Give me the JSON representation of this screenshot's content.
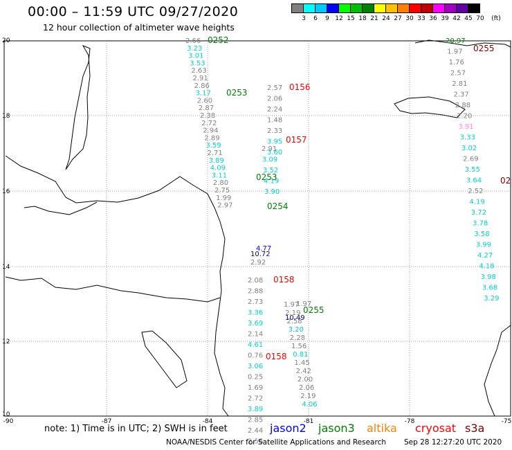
{
  "header": {
    "title": "00:00 – 11:59 UTC 09/27/2020",
    "subtitle": "12 hour collection of altimeter wave heights"
  },
  "legend": {
    "colors": [
      "#808080",
      "#00ffff",
      "#00c8ff",
      "#0000ff",
      "#00ff00",
      "#00c000",
      "#008000",
      "#ffff00",
      "#ffc000",
      "#ff8000",
      "#ff0000",
      "#c00000",
      "#ff00ff",
      "#a000c0",
      "#6000a0",
      "#000000"
    ],
    "labels": [
      "3",
      "6",
      "9",
      "12",
      "15",
      "18",
      "21",
      "24",
      "27",
      "30",
      "33",
      "36",
      "39",
      "42",
      "45",
      "70",
      "(ft)"
    ]
  },
  "axes": {
    "lat_labels": [
      "20",
      "18",
      "16",
      "14",
      "12",
      "10"
    ],
    "lon_labels": [
      "-90",
      "-87",
      "-84",
      "-81",
      "-78",
      "-75"
    ]
  },
  "tracks": [
    {
      "label": "0252",
      "color": "#008000",
      "points": [
        {
          "v": "2.66",
          "c": "#808080"
        },
        {
          "v": "3.23",
          "c": "#00d0d0"
        },
        {
          "v": "3.01",
          "c": "#00d0d0"
        },
        {
          "v": "3.53",
          "c": "#00d0d0"
        },
        {
          "v": "2.63",
          "c": "#808080"
        },
        {
          "v": "2.91",
          "c": "#808080"
        },
        {
          "v": "2.86",
          "c": "#808080"
        },
        {
          "v": "3.17",
          "c": "#00d0d0"
        },
        {
          "v": "2.60",
          "c": "#808080"
        },
        {
          "v": "2.87",
          "c": "#808080"
        },
        {
          "v": "2.38",
          "c": "#808080"
        },
        {
          "v": "2.72",
          "c": "#808080"
        },
        {
          "v": "2.94",
          "c": "#808080"
        },
        {
          "v": "2.89",
          "c": "#808080"
        },
        {
          "v": "3.59",
          "c": "#00d0d0"
        },
        {
          "v": "2.71",
          "c": "#808080"
        },
        {
          "v": "3.89",
          "c": "#00d0d0"
        },
        {
          "v": "4.09",
          "c": "#00d0d0"
        },
        {
          "v": "3.11",
          "c": "#00d0d0"
        },
        {
          "v": "2.80",
          "c": "#808080"
        },
        {
          "v": "2.75",
          "c": "#808080"
        },
        {
          "v": "1.99",
          "c": "#808080"
        },
        {
          "v": "2.97",
          "c": "#808080"
        }
      ]
    },
    {
      "label": "0253",
      "color": "#008000",
      "points": []
    },
    {
      "label": "0156",
      "color": "#ff0000",
      "points": [
        {
          "v": "2.57",
          "c": "#808080"
        },
        {
          "v": "2.06",
          "c": "#808080"
        },
        {
          "v": "2.24",
          "c": "#808080"
        },
        {
          "v": "1.48",
          "c": "#808080"
        },
        {
          "v": "2.33",
          "c": "#808080"
        },
        {
          "v": "3.95",
          "c": "#00d0d0"
        },
        {
          "v": "3.60",
          "c": "#00d0d0"
        }
      ]
    },
    {
      "label": "0157",
      "color": "#ff0000",
      "points": [
        {
          "v": "2.91",
          "c": "#808080"
        },
        {
          "v": "3.09",
          "c": "#00d0d0"
        },
        {
          "v": "3.52",
          "c": "#00d0d0"
        },
        {
          "v": "4.19",
          "c": "#00d0d0"
        },
        {
          "v": "3.90",
          "c": "#00d0d0"
        }
      ]
    },
    {
      "label": "0158",
      "color": "#ff0000",
      "points": [
        {
          "v": "2.08",
          "c": "#808080"
        },
        {
          "v": "2.88",
          "c": "#808080"
        },
        {
          "v": "2.73",
          "c": "#808080"
        },
        {
          "v": "3.36",
          "c": "#00d0d0"
        },
        {
          "v": "3.69",
          "c": "#00d0d0"
        },
        {
          "v": "2.14",
          "c": "#808080"
        },
        {
          "v": "4.61",
          "c": "#00d0d0"
        },
        {
          "v": "0.76",
          "c": "#808080"
        },
        {
          "v": "3.06",
          "c": "#00d0d0"
        },
        {
          "v": "0.25",
          "c": "#808080"
        },
        {
          "v": "1.69",
          "c": "#808080"
        },
        {
          "v": "2.72",
          "c": "#808080"
        },
        {
          "v": "3.89",
          "c": "#00d0d0"
        },
        {
          "v": "2.85",
          "c": "#808080"
        },
        {
          "v": "2.44",
          "c": "#808080"
        },
        {
          "v": "2.56",
          "c": "#808080"
        }
      ]
    },
    {
      "label": "0255",
      "color": "#008000",
      "points": [
        {
          "v": "1.97",
          "c": "#808080"
        },
        {
          "v": "2.19",
          "c": "#808080"
        },
        {
          "v": "2.58",
          "c": "#808080"
        },
        {
          "v": "3.20",
          "c": "#00d0d0"
        },
        {
          "v": "2.28",
          "c": "#808080"
        },
        {
          "v": "1.56",
          "c": "#808080"
        },
        {
          "v": "0.81",
          "c": "#00d0d0"
        },
        {
          "v": "1.45",
          "c": "#808080"
        },
        {
          "v": "2.42",
          "c": "#808080"
        },
        {
          "v": "2.00",
          "c": "#808080"
        },
        {
          "v": "2.06",
          "c": "#808080"
        },
        {
          "v": "2.19",
          "c": "#808080"
        },
        {
          "v": "4.06",
          "c": "#00d0d0"
        }
      ]
    },
    {
      "label": "0255",
      "color": "#800000",
      "points": [
        {
          "v": "20.97",
          "c": "#008000"
        },
        {
          "v": "1.97",
          "c": "#808080"
        },
        {
          "v": "1.76",
          "c": "#808080"
        },
        {
          "v": "2.57",
          "c": "#808080"
        },
        {
          "v": "2.81",
          "c": "#808080"
        },
        {
          "v": "2.37",
          "c": "#808080"
        },
        {
          "v": "2.88",
          "c": "#808080"
        },
        {
          "v": "2.20",
          "c": "#808080"
        },
        {
          "v": "3.91",
          "c": "#ff80ff"
        },
        {
          "v": "3.33",
          "c": "#00d0d0"
        },
        {
          "v": "3.02",
          "c": "#00d0d0"
        },
        {
          "v": "2.69",
          "c": "#808080"
        },
        {
          "v": "3.55",
          "c": "#00d0d0"
        },
        {
          "v": "3.64",
          "c": "#00d0d0"
        },
        {
          "v": "2.52",
          "c": "#808080"
        },
        {
          "v": "4.19",
          "c": "#00d0d0"
        },
        {
          "v": "3.72",
          "c": "#00d0d0"
        },
        {
          "v": "3.78",
          "c": "#00d0d0"
        },
        {
          "v": "3.58",
          "c": "#00d0d0"
        },
        {
          "v": "3.99",
          "c": "#00d0d0"
        },
        {
          "v": "4.27",
          "c": "#00d0d0"
        },
        {
          "v": "4.18",
          "c": "#00d0d0"
        },
        {
          "v": "3.98",
          "c": "#00d0d0"
        },
        {
          "v": "3.68",
          "c": "#00d0d0"
        },
        {
          "v": "3.29",
          "c": "#00d0d0"
        }
      ]
    }
  ],
  "extra_labels": [
    {
      "v": "0253",
      "c": "#008000"
    },
    {
      "v": "0254",
      "c": "#008000"
    },
    {
      "v": "0158",
      "c": "#ff0000"
    },
    {
      "v": "02",
      "c": "#800000"
    },
    {
      "v": "10.72",
      "c": "#000080"
    },
    {
      "v": "4.77",
      "c": "#0000ff"
    },
    {
      "v": "10.49",
      "c": "#000080"
    },
    {
      "v": "2.92",
      "c": "#808080"
    },
    {
      "v": "1.97",
      "c": "#808080"
    }
  ],
  "note": "note:  1) Time is in UTC;  2) SWH is in feet",
  "satellites": [
    {
      "name": "jason2",
      "color": "#0000ff"
    },
    {
      "name": "jason3",
      "color": "#008000"
    },
    {
      "name": "altika",
      "color": "#ff8000"
    },
    {
      "name": "cryosat",
      "color": "#ff0000"
    },
    {
      "name": "s3a",
      "color": "#800000"
    }
  ],
  "footer": {
    "credit": "NOAA/NESDIS Center for Satellite Applications and Research",
    "timestamp": "Sep 28 12:27:20 UTC 2020"
  }
}
